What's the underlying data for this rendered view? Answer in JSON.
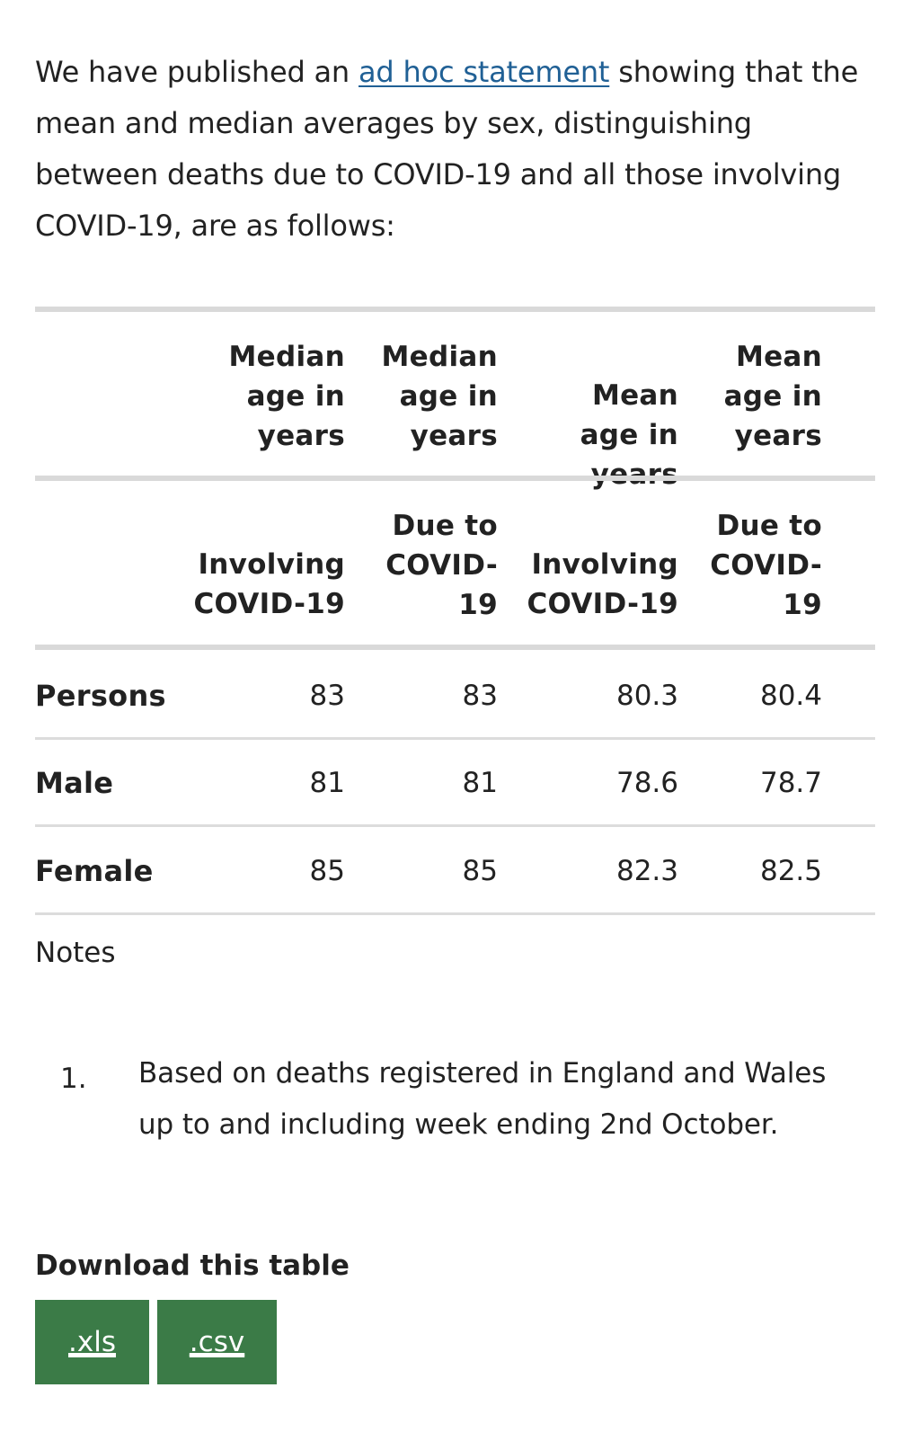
{
  "intro": {
    "before_link": "We have published an ",
    "link_text": "ad hoc statement",
    "after_link": " showing that the mean and median averages by sex, distinguishing between deaths due to COVID-19 and all those involving COVID-19, are as follows:"
  },
  "table": {
    "header_row1": [
      "Median age in years",
      "Median age in years",
      "Mean age in years",
      "Mean age in years"
    ],
    "header_row2": [
      "Involving COVID-19",
      "Due to COVID-19",
      "Involving COVID-19",
      "Due to COVID-19"
    ],
    "rows": [
      {
        "label": "Persons",
        "values": [
          "83",
          "83",
          "80.3",
          "80.4"
        ]
      },
      {
        "label": "Male",
        "values": [
          "81",
          "81",
          "78.6",
          "78.7"
        ]
      },
      {
        "label": "Female",
        "values": [
          "85",
          "85",
          "82.3",
          "82.5"
        ]
      }
    ]
  },
  "notes": {
    "title": "Notes",
    "items": [
      {
        "number": "1.",
        "text": "Based on deaths registered in England and Wales up to and including week ending 2nd October."
      }
    ]
  },
  "download": {
    "title": "Download this table",
    "xls_label": ".xls",
    "csv_label": ".csv"
  },
  "colors": {
    "link": "#206095",
    "button_bg": "#3b7b47",
    "rule": "#d9d9d9",
    "text": "#222222"
  }
}
